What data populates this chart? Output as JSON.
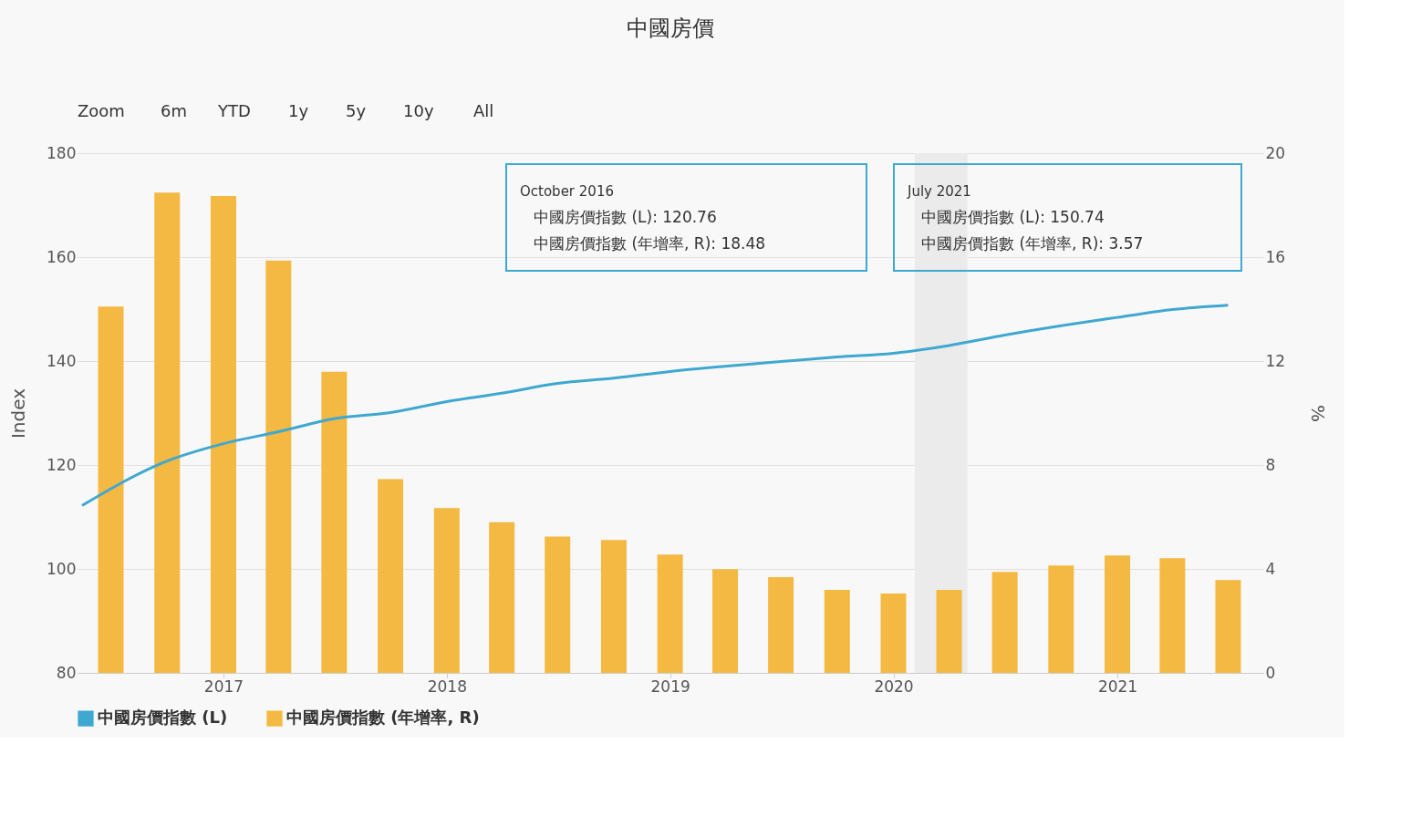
{
  "chart_data": {
    "type": "bar",
    "title": "中國房價",
    "ylabel": "Index",
    "y2label": "%",
    "x": [
      "2016-07",
      "2016-10",
      "2017-01",
      "2017-04",
      "2017-07",
      "2017-10",
      "2018-01",
      "2018-04",
      "2018-07",
      "2018-10",
      "2019-01",
      "2019-04",
      "2019-07",
      "2019-10",
      "2020-01",
      "2020-04",
      "2020-07",
      "2020-10",
      "2021-01",
      "2021-04",
      "2021-07"
    ],
    "series": [
      {
        "name": "中國房價指數 (L)",
        "type": "line",
        "color": "#3ea8d1",
        "x": [
          "2016-05-15",
          "2016-10",
          "2017-01",
          "2017-04",
          "2017-07",
          "2017-10",
          "2018-01",
          "2018-04",
          "2018-07",
          "2018-10",
          "2019-01",
          "2019-04",
          "2019-07",
          "2019-10",
          "2020-01",
          "2020-04",
          "2020-07",
          "2020-10",
          "2021-01",
          "2021-04",
          "2021-07"
        ],
        "values": [
          112.2,
          120.76,
          124.1,
          126.4,
          128.9,
          130.1,
          132.2,
          133.8,
          135.7,
          136.7,
          138.0,
          139.0,
          139.9,
          140.8,
          141.5,
          143.0,
          145.0,
          146.8,
          148.4,
          149.9,
          150.74
        ]
      },
      {
        "name": "中國房價指數 (年增率, R)",
        "type": "bar",
        "axis": "y2",
        "color": "#f4b942",
        "values": [
          14.1,
          18.48,
          18.35,
          15.87,
          11.59,
          7.46,
          6.34,
          5.8,
          5.25,
          5.11,
          4.55,
          3.99,
          3.68,
          3.19,
          3.05,
          3.19,
          3.89,
          4.13,
          4.52,
          4.41,
          3.57
        ]
      }
    ],
    "xlim": [
      "2016-05-15",
      "2021-08-20"
    ],
    "xticks": [
      {
        "value": "2017",
        "label": "2017"
      },
      {
        "value": "2018",
        "label": "2018"
      },
      {
        "value": "2019",
        "label": "2019"
      },
      {
        "value": "2020",
        "label": "2020"
      },
      {
        "value": "2021",
        "label": "2021"
      }
    ],
    "ylim": [
      80,
      180
    ],
    "yticks": [
      80,
      100,
      120,
      140,
      160,
      180
    ],
    "y2lim": [
      0,
      20
    ],
    "y2ticks": [
      0,
      4,
      8,
      12,
      16,
      20
    ],
    "bands": [
      {
        "axis": "x",
        "from": "2020-02-05",
        "to": "2020-05-01",
        "color": "#ebebeb"
      }
    ],
    "annotations": [
      "October 2016\n中國房價指數 (L): 120.76\n中國房價指數 (年增率, R): 18.48",
      "July 2021\n中國房價指數 (L): 150.74\n中國房價指數 (年增率, R): 3.57",
      "Zoom",
      "6m",
      "YTD",
      "1y",
      "5y",
      "10y",
      "All"
    ],
    "grid": "y",
    "legend": "bottom"
  }
}
